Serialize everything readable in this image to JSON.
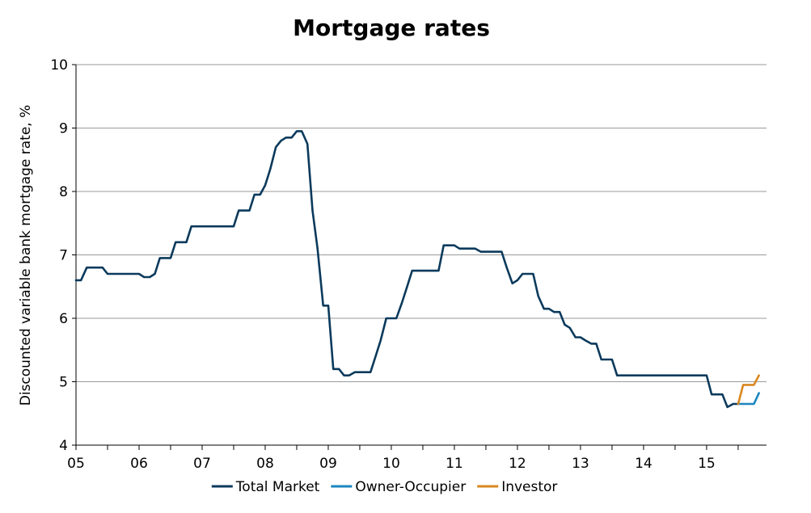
{
  "chart_data": {
    "type": "line",
    "title": "Mortgage rates",
    "ylabel": "Discounted variable bank mortgage rate, %",
    "xlabel": "",
    "xlim": [
      2005,
      2015.95
    ],
    "ylim": [
      4,
      10
    ],
    "yticks": [
      "4",
      "5",
      "6",
      "7",
      "8",
      "9",
      "10"
    ],
    "xticks": [
      {
        "label": "05",
        "value": 2005
      },
      {
        "label": "06",
        "value": 2006
      },
      {
        "label": "07",
        "value": 2007
      },
      {
        "label": "08",
        "value": 2008
      },
      {
        "label": "09",
        "value": 2009
      },
      {
        "label": "10",
        "value": 2010
      },
      {
        "label": "11",
        "value": 2011
      },
      {
        "label": "12",
        "value": 2012
      },
      {
        "label": "13",
        "value": 2013
      },
      {
        "label": "14",
        "value": 2014
      },
      {
        "label": "15",
        "value": 2015
      }
    ],
    "grid": "horizontal",
    "legend": "bottom",
    "series": [
      {
        "name": "Total Market",
        "color": "#0b3a5c",
        "points": [
          [
            2005.0,
            6.6
          ],
          [
            2005.08,
            6.6
          ],
          [
            2005.17,
            6.8
          ],
          [
            2005.25,
            6.8
          ],
          [
            2005.33,
            6.8
          ],
          [
            2005.42,
            6.8
          ],
          [
            2005.5,
            6.7
          ],
          [
            2005.58,
            6.7
          ],
          [
            2005.67,
            6.7
          ],
          [
            2005.75,
            6.7
          ],
          [
            2005.83,
            6.7
          ],
          [
            2005.92,
            6.7
          ],
          [
            2006.0,
            6.7
          ],
          [
            2006.08,
            6.65
          ],
          [
            2006.17,
            6.65
          ],
          [
            2006.25,
            6.7
          ],
          [
            2006.33,
            6.95
          ],
          [
            2006.42,
            6.95
          ],
          [
            2006.5,
            6.95
          ],
          [
            2006.58,
            7.2
          ],
          [
            2006.67,
            7.2
          ],
          [
            2006.75,
            7.2
          ],
          [
            2006.83,
            7.45
          ],
          [
            2006.92,
            7.45
          ],
          [
            2007.0,
            7.45
          ],
          [
            2007.08,
            7.45
          ],
          [
            2007.17,
            7.45
          ],
          [
            2007.25,
            7.45
          ],
          [
            2007.33,
            7.45
          ],
          [
            2007.42,
            7.45
          ],
          [
            2007.5,
            7.45
          ],
          [
            2007.58,
            7.7
          ],
          [
            2007.67,
            7.7
          ],
          [
            2007.75,
            7.7
          ],
          [
            2007.83,
            7.95
          ],
          [
            2007.92,
            7.95
          ],
          [
            2008.0,
            8.1
          ],
          [
            2008.08,
            8.35
          ],
          [
            2008.17,
            8.7
          ],
          [
            2008.25,
            8.8
          ],
          [
            2008.33,
            8.85
          ],
          [
            2008.42,
            8.85
          ],
          [
            2008.5,
            8.95
          ],
          [
            2008.58,
            8.95
          ],
          [
            2008.67,
            8.75
          ],
          [
            2008.75,
            7.7
          ],
          [
            2008.83,
            7.1
          ],
          [
            2008.92,
            6.2
          ],
          [
            2009.0,
            6.2
          ],
          [
            2009.08,
            5.2
          ],
          [
            2009.17,
            5.2
          ],
          [
            2009.25,
            5.1
          ],
          [
            2009.33,
            5.1
          ],
          [
            2009.42,
            5.15
          ],
          [
            2009.5,
            5.15
          ],
          [
            2009.58,
            5.15
          ],
          [
            2009.67,
            5.15
          ],
          [
            2009.75,
            5.4
          ],
          [
            2009.83,
            5.65
          ],
          [
            2009.92,
            6.0
          ],
          [
            2010.0,
            6.0
          ],
          [
            2010.08,
            6.0
          ],
          [
            2010.17,
            6.25
          ],
          [
            2010.25,
            6.5
          ],
          [
            2010.33,
            6.75
          ],
          [
            2010.42,
            6.75
          ],
          [
            2010.5,
            6.75
          ],
          [
            2010.58,
            6.75
          ],
          [
            2010.67,
            6.75
          ],
          [
            2010.75,
            6.75
          ],
          [
            2010.83,
            7.15
          ],
          [
            2010.92,
            7.15
          ],
          [
            2011.0,
            7.15
          ],
          [
            2011.08,
            7.1
          ],
          [
            2011.17,
            7.1
          ],
          [
            2011.25,
            7.1
          ],
          [
            2011.33,
            7.1
          ],
          [
            2011.42,
            7.05
          ],
          [
            2011.5,
            7.05
          ],
          [
            2011.58,
            7.05
          ],
          [
            2011.67,
            7.05
          ],
          [
            2011.75,
            7.05
          ],
          [
            2011.83,
            6.8
          ],
          [
            2011.92,
            6.55
          ],
          [
            2012.0,
            6.6
          ],
          [
            2012.08,
            6.7
          ],
          [
            2012.17,
            6.7
          ],
          [
            2012.25,
            6.7
          ],
          [
            2012.33,
            6.35
          ],
          [
            2012.42,
            6.15
          ],
          [
            2012.5,
            6.15
          ],
          [
            2012.58,
            6.1
          ],
          [
            2012.67,
            6.1
          ],
          [
            2012.75,
            5.9
          ],
          [
            2012.83,
            5.85
          ],
          [
            2012.92,
            5.7
          ],
          [
            2013.0,
            5.7
          ],
          [
            2013.08,
            5.65
          ],
          [
            2013.17,
            5.6
          ],
          [
            2013.25,
            5.6
          ],
          [
            2013.33,
            5.35
          ],
          [
            2013.42,
            5.35
          ],
          [
            2013.5,
            5.35
          ],
          [
            2013.58,
            5.1
          ],
          [
            2013.67,
            5.1
          ],
          [
            2013.75,
            5.1
          ],
          [
            2013.83,
            5.1
          ],
          [
            2013.92,
            5.1
          ],
          [
            2014.0,
            5.1
          ],
          [
            2014.08,
            5.1
          ],
          [
            2014.17,
            5.1
          ],
          [
            2014.25,
            5.1
          ],
          [
            2014.33,
            5.1
          ],
          [
            2014.42,
            5.1
          ],
          [
            2014.5,
            5.1
          ],
          [
            2014.58,
            5.1
          ],
          [
            2014.67,
            5.1
          ],
          [
            2014.75,
            5.1
          ],
          [
            2014.83,
            5.1
          ],
          [
            2014.92,
            5.1
          ],
          [
            2015.0,
            5.1
          ],
          [
            2015.08,
            4.8
          ],
          [
            2015.17,
            4.8
          ],
          [
            2015.25,
            4.8
          ],
          [
            2015.33,
            4.6
          ],
          [
            2015.42,
            4.65
          ],
          [
            2015.5,
            4.65
          ]
        ]
      },
      {
        "name": "Owner-Occupier",
        "color": "#1a86bf",
        "points": [
          [
            2015.5,
            4.65
          ],
          [
            2015.58,
            4.65
          ],
          [
            2015.67,
            4.65
          ],
          [
            2015.75,
            4.65
          ],
          [
            2015.83,
            4.82
          ]
        ]
      },
      {
        "name": "Investor",
        "color": "#d9871f",
        "points": [
          [
            2015.5,
            4.65
          ],
          [
            2015.58,
            4.95
          ],
          [
            2015.67,
            4.95
          ],
          [
            2015.75,
            4.95
          ],
          [
            2015.83,
            5.1
          ]
        ]
      }
    ]
  }
}
